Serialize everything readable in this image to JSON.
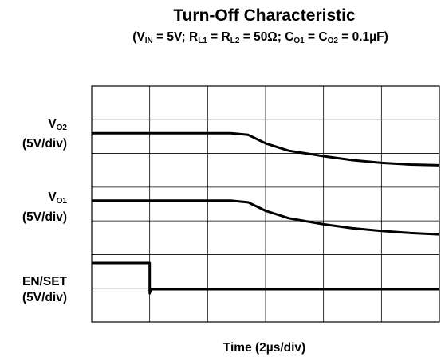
{
  "chart_data": {
    "type": "line",
    "title": "Turn-Off Characteristic",
    "subtitle_parts": {
      "open": "(V",
      "vin_sub": "IN",
      "vin_val": " = 5V; R",
      "rl1_sub": "L1",
      "eq1": " = R",
      "rl2_sub": "L2",
      "rl_val": " = 50Ω; C",
      "co1_sub": "O1",
      "eq2": " = C",
      "co2_sub": "O2",
      "co_val": " = 0.1µF)"
    },
    "xlabel": "Time (2µs/div)",
    "x_divisions": 6,
    "y_divisions": 7,
    "grid": true,
    "channels": [
      {
        "label_main": "V",
        "label_sub": "O2",
        "scale": "(5V/div)"
      },
      {
        "label_main": "V",
        "label_sub": "O1",
        "scale": "(5V/div)"
      },
      {
        "label_main": "EN/SET",
        "label_sub": "",
        "scale": "(5V/div)"
      }
    ],
    "series": [
      {
        "x_div": [
          0,
          2.4,
          2.7,
          3.0,
          3.4,
          4.0,
          4.5,
          5.0,
          5.5,
          6.0
        ],
        "y_div": [
          5.6,
          5.6,
          5.55,
          5.3,
          5.08,
          4.92,
          4.8,
          4.72,
          4.67,
          4.65
        ]
      },
      {
        "x_div": [
          0,
          2.4,
          2.7,
          3.0,
          3.4,
          4.0,
          4.5,
          5.0,
          5.5,
          6.0
        ],
        "y_div": [
          3.6,
          3.6,
          3.55,
          3.3,
          3.08,
          2.9,
          2.78,
          2.7,
          2.64,
          2.6
        ]
      },
      {
        "x_div": [
          0,
          1.0,
          1.001,
          1.02,
          6.0
        ],
        "y_div": [
          1.75,
          1.75,
          0.85,
          0.97,
          0.97
        ]
      }
    ]
  }
}
